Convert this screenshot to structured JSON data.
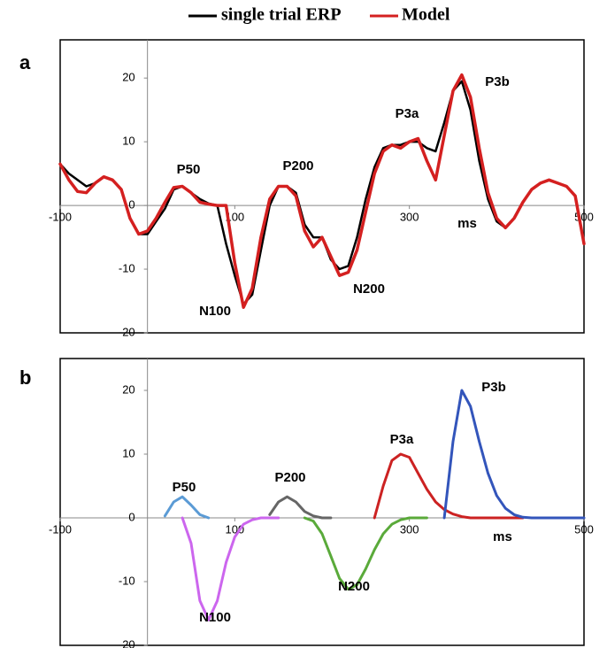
{
  "chart_data": [
    {
      "type": "line",
      "title": "a",
      "x": [
        -100,
        -90,
        -80,
        -70,
        -60,
        -50,
        -40,
        -30,
        -20,
        -10,
        0,
        10,
        20,
        30,
        40,
        50,
        60,
        70,
        80,
        90,
        100,
        110,
        120,
        130,
        140,
        150,
        160,
        170,
        180,
        190,
        200,
        210,
        220,
        230,
        240,
        250,
        260,
        270,
        280,
        290,
        300,
        310,
        320,
        330,
        340,
        350,
        360,
        370,
        380,
        390,
        400,
        410,
        420,
        430,
        440,
        450,
        460,
        470,
        480,
        490,
        500
      ],
      "series": [
        {
          "name": "single trial ERP",
          "color": "#000000",
          "values": [
            6.5,
            5,
            4,
            3,
            3.5,
            4.5,
            4,
            2.5,
            -2,
            -4.5,
            -4.5,
            -2.5,
            -0.5,
            2.5,
            3,
            2,
            1,
            0.3,
            0,
            -6,
            -11,
            -15.5,
            -14,
            -7,
            0,
            3,
            3,
            2,
            -3,
            -5,
            -5,
            -8.5,
            -10,
            -9.5,
            -5,
            1,
            6,
            9,
            9.5,
            9.5,
            10,
            10,
            9,
            8.5,
            13,
            18,
            19.5,
            15,
            7,
            1,
            -2.5,
            -3.5,
            -2,
            0.5,
            2.5,
            3.5,
            4,
            3.5,
            3,
            1.5,
            -6
          ]
        },
        {
          "name": "Model",
          "color": "#d42020",
          "values": [
            6.5,
            4,
            2.2,
            2,
            3.5,
            4.5,
            4,
            2.5,
            -2,
            -4.5,
            -4,
            -2,
            0.5,
            2.8,
            3,
            2,
            0.5,
            0.2,
            0,
            0,
            -9,
            -16,
            -13,
            -5,
            1,
            3,
            3,
            1.5,
            -4,
            -6.5,
            -5,
            -8,
            -11,
            -10.5,
            -7,
            -1,
            5,
            8.5,
            9.5,
            9,
            10,
            10.5,
            7,
            4,
            11,
            18,
            20.5,
            17,
            9,
            2,
            -2,
            -3.5,
            -2,
            0.5,
            2.5,
            3.5,
            4,
            3.5,
            3,
            1.5,
            -6
          ]
        }
      ],
      "annotations": [
        "P50",
        "N100",
        "P200",
        "N200",
        "P3a",
        "P3b",
        "ms"
      ],
      "xlim": [
        -100,
        500
      ],
      "xticks": [
        -100,
        100,
        300,
        500
      ],
      "ylim": [
        -20,
        26
      ],
      "yticks": [
        -20,
        -10,
        0,
        10,
        20
      ]
    },
    {
      "type": "line",
      "title": "b",
      "x": [
        10,
        20,
        30,
        40,
        50,
        60,
        70,
        80,
        90,
        100,
        110,
        120,
        130,
        140,
        150,
        160,
        170,
        180,
        190,
        200,
        210,
        220,
        230,
        240,
        250,
        260,
        270,
        280,
        290,
        300,
        310,
        320,
        330,
        340,
        350,
        360,
        370,
        380,
        390,
        400,
        410,
        420,
        430,
        440,
        450,
        460,
        470,
        480,
        490,
        500
      ],
      "series": [
        {
          "name": "P50",
          "color": "#5b9bd5",
          "values": [
            null,
            0.3,
            2.5,
            3.3,
            2,
            0.5,
            0,
            null,
            null,
            null,
            null,
            null,
            null,
            null,
            null,
            null,
            null,
            null,
            null,
            null,
            null,
            null,
            null,
            null,
            null,
            null,
            null,
            null,
            null,
            null,
            null,
            null,
            null,
            null,
            null,
            null,
            null,
            null,
            null,
            null,
            null,
            null,
            null,
            null,
            null,
            null,
            null,
            null,
            null,
            null
          ]
        },
        {
          "name": "N100",
          "color": "#cc66ee",
          "values": [
            null,
            null,
            null,
            0,
            -4,
            -13,
            -16,
            -13,
            -7,
            -3,
            -1,
            -0.3,
            0,
            0,
            0,
            null,
            null,
            null,
            null,
            null,
            null,
            null,
            null,
            null,
            null,
            null,
            null,
            null,
            null,
            null,
            null,
            null,
            null,
            null,
            null,
            null,
            null,
            null,
            null,
            null,
            null,
            null,
            null,
            null,
            null,
            null,
            null,
            null,
            null,
            null
          ]
        },
        {
          "name": "P200",
          "color": "#666666",
          "values": [
            null,
            null,
            null,
            null,
            null,
            null,
            null,
            null,
            null,
            null,
            null,
            null,
            null,
            0.5,
            2.5,
            3.3,
            2.5,
            1,
            0.3,
            0,
            0,
            null,
            null,
            null,
            null,
            null,
            null,
            null,
            null,
            null,
            null,
            null,
            null,
            null,
            null,
            null,
            null,
            null,
            null,
            null,
            null,
            null,
            null,
            null,
            null,
            null,
            null,
            null,
            null,
            null
          ]
        },
        {
          "name": "N200",
          "color": "#5aaa3a",
          "values": [
            null,
            null,
            null,
            null,
            null,
            null,
            null,
            null,
            null,
            null,
            null,
            null,
            null,
            null,
            null,
            null,
            null,
            0,
            -0.5,
            -2.5,
            -6,
            -9.5,
            -11.2,
            -10.5,
            -8,
            -5,
            -2.5,
            -1,
            -0.3,
            0,
            0,
            0,
            null,
            null,
            null,
            null,
            null,
            null,
            null,
            null,
            null,
            null,
            null,
            null,
            null,
            null,
            null,
            null,
            null,
            null
          ]
        },
        {
          "name": "P3a",
          "color": "#cc2222",
          "values": [
            null,
            null,
            null,
            null,
            null,
            null,
            null,
            null,
            null,
            null,
            null,
            null,
            null,
            null,
            null,
            null,
            null,
            null,
            null,
            null,
            null,
            null,
            null,
            null,
            null,
            0,
            5,
            9,
            10,
            9.5,
            7,
            4.5,
            2.5,
            1.3,
            0.6,
            0.2,
            0,
            0,
            0,
            0,
            0,
            0,
            0,
            null,
            null,
            null,
            null,
            null,
            null,
            null
          ]
        },
        {
          "name": "P3b",
          "color": "#3355bb",
          "values": [
            null,
            null,
            null,
            null,
            null,
            null,
            null,
            null,
            null,
            null,
            null,
            null,
            null,
            null,
            null,
            null,
            null,
            null,
            null,
            null,
            null,
            null,
            null,
            null,
            null,
            null,
            null,
            null,
            null,
            null,
            null,
            null,
            null,
            0,
            12,
            20,
            17.5,
            12,
            7,
            3.5,
            1.5,
            0.5,
            0.1,
            0,
            0,
            0,
            0,
            0,
            0,
            0
          ]
        }
      ],
      "annotations": [
        "ms"
      ],
      "xlim": [
        -100,
        500
      ],
      "xticks": [
        -100,
        100,
        300,
        500
      ],
      "ylim": [
        -20,
        25
      ],
      "yticks": [
        -20,
        -10,
        0,
        10,
        20
      ]
    }
  ]
}
